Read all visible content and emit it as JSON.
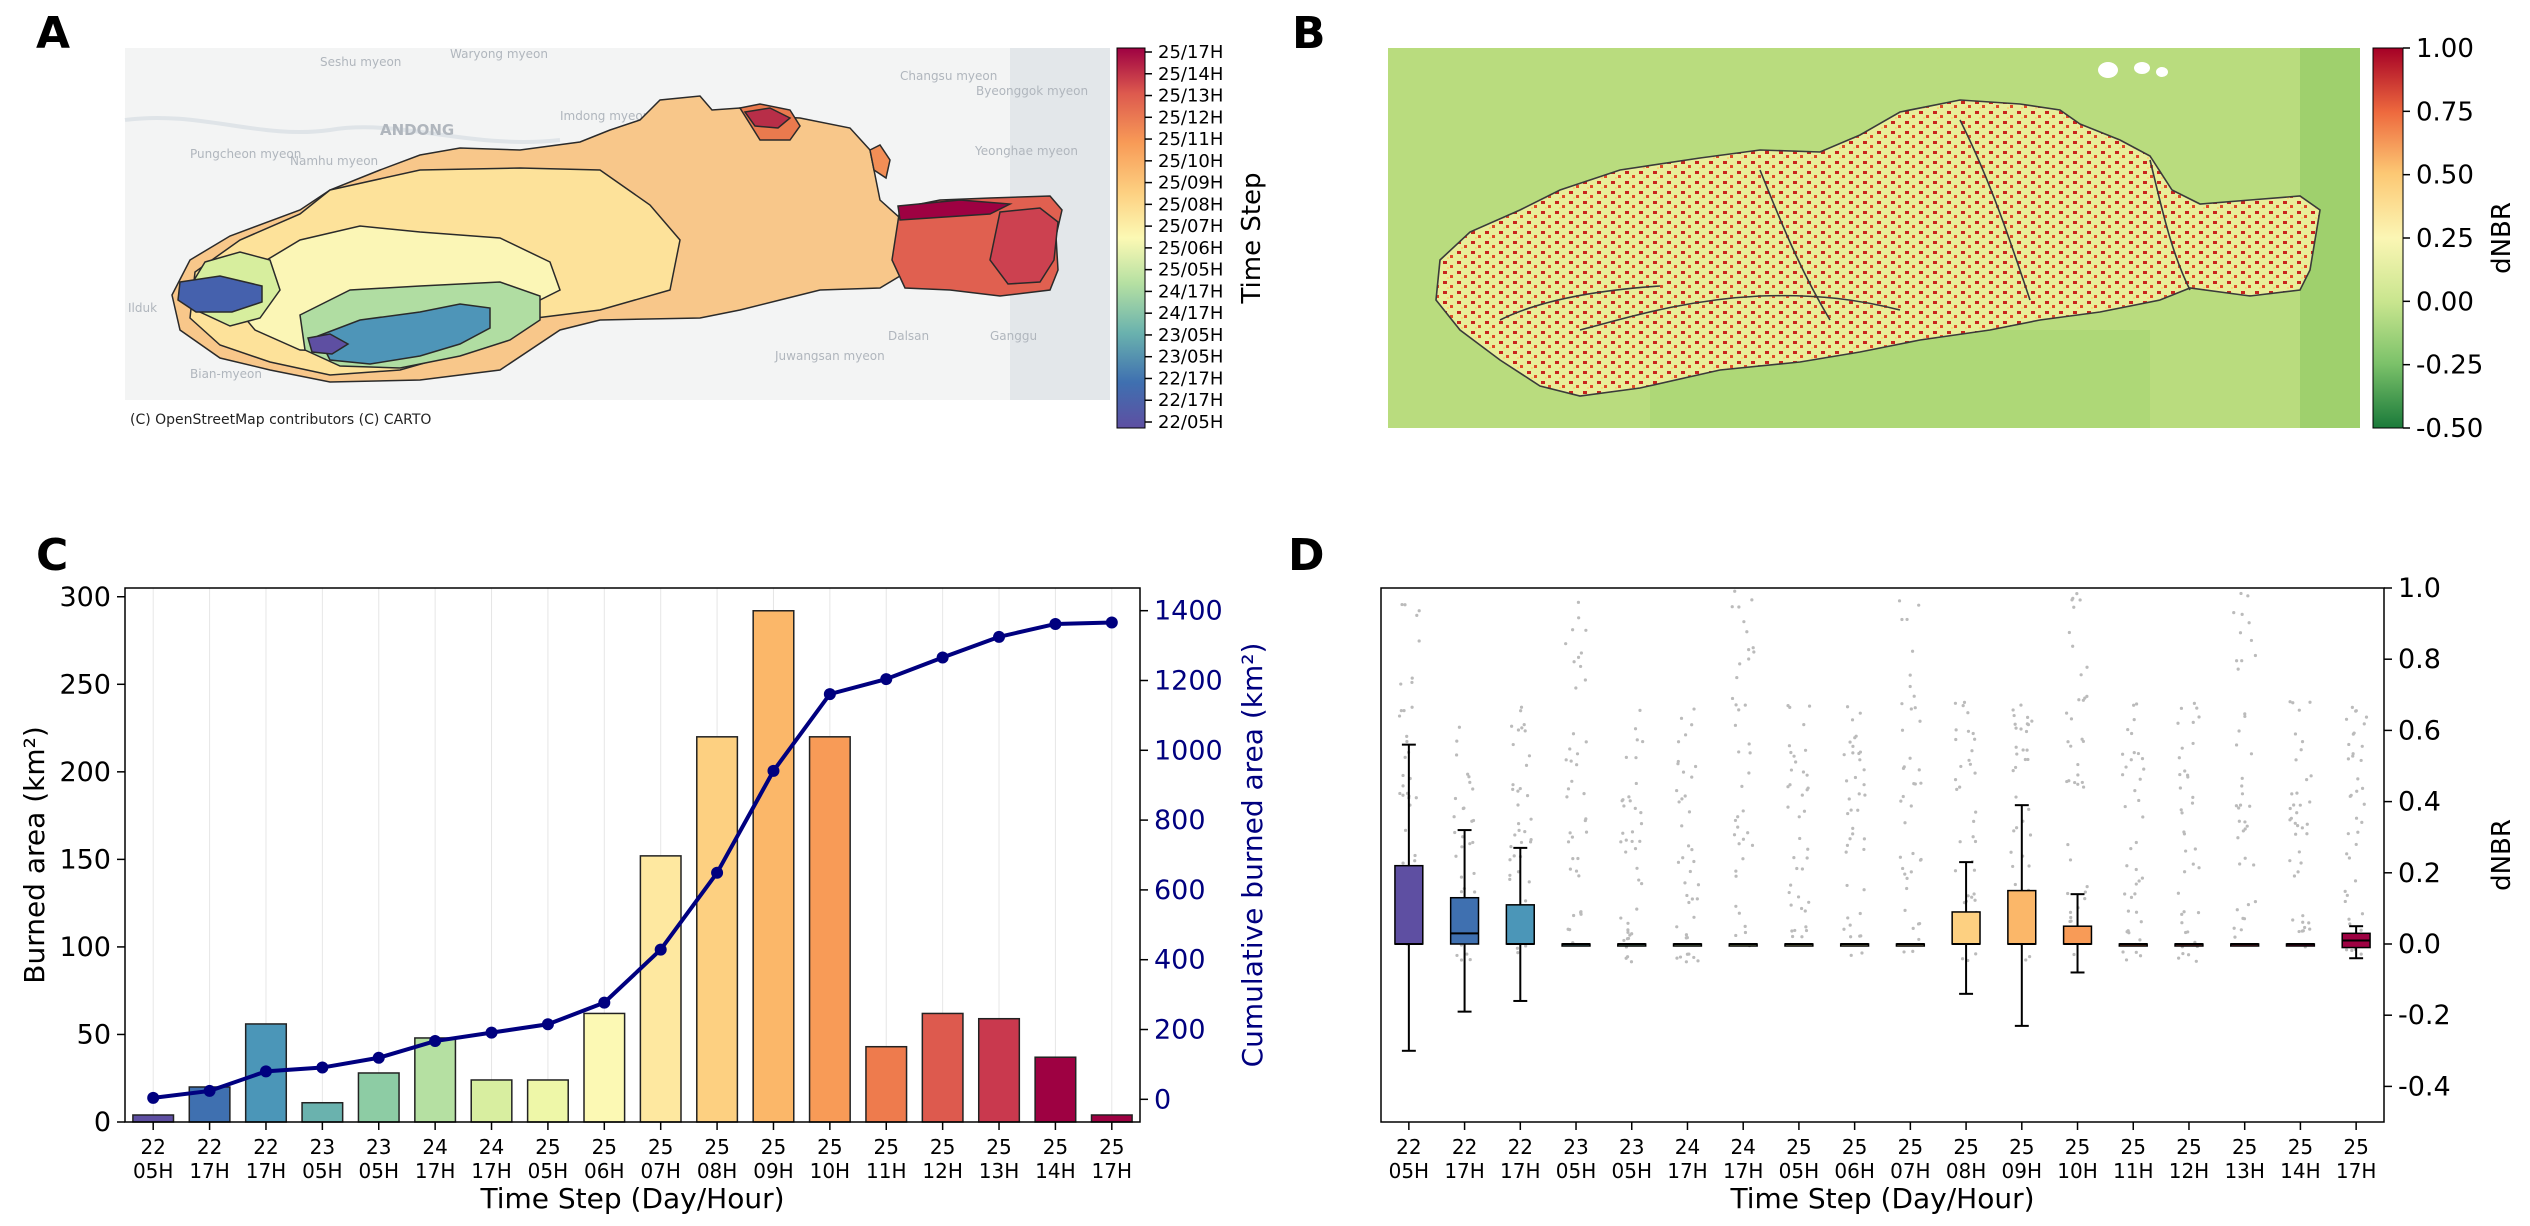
{
  "colors": {
    "spectral": [
      "#5e4fa2",
      "#3f70b0",
      "#4b96b8",
      "#6ab2ae",
      "#8dcca4",
      "#b5e0a2",
      "#d8eea0",
      "#eef7a8",
      "#fcf9b4",
      "#fee8a0",
      "#fdd081",
      "#fbb769",
      "#f89b57",
      "#ee7b4d",
      "#dd5a4e",
      "#c9394e",
      "#9e0142"
    ],
    "line": "#00007f",
    "bar_edge": "#222222"
  },
  "panelA": {
    "letter": "A",
    "attribution": "(C) OpenStreetMap contributors (C) CARTO",
    "colorbar_label": "Time Step",
    "colorbar_ticks": [
      "25/17H",
      "25/14H",
      "25/13H",
      "25/12H",
      "25/11H",
      "25/10H",
      "25/09H",
      "25/08H",
      "25/07H",
      "25/06H",
      "25/05H",
      "24/17H",
      "24/17H",
      "23/05H",
      "23/05H",
      "22/17H",
      "22/17H",
      "22/05H"
    ],
    "place_labels": [
      "Seshu myeon",
      "Waryong myeon",
      "ANDONG",
      "Imdong myeon",
      "Pungcheon myeon",
      "Namhu myeon",
      "Changsu myeon",
      "Byeonggok myeon",
      "Yeonghae myeon",
      "Dalsan",
      "Juwangsan myeon",
      "Ganggu",
      "Bian-myeon",
      "Ilduk"
    ]
  },
  "panelB": {
    "letter": "B",
    "colorbar_label": "dNBR",
    "colorbar_ticks": [
      "1.00",
      "0.75",
      "0.50",
      "0.25",
      "0.00",
      "-0.25",
      "-0.50"
    ]
  },
  "chart_data": [
    {
      "panel": "C",
      "type": "bar",
      "categories": [
        "22\n05H",
        "22\n17H",
        "22\n17H",
        "23\n05H",
        "23\n05H",
        "24\n17H",
        "24\n17H",
        "25\n05H",
        "25\n06H",
        "25\n07H",
        "25\n08H",
        "25\n09H",
        "25\n10H",
        "25\n11H",
        "25\n12H",
        "25\n13H",
        "25\n14H",
        "25\n17H"
      ],
      "values": [
        4,
        20,
        56,
        11,
        28,
        48,
        24,
        24,
        62,
        152,
        220,
        292,
        220,
        43,
        62,
        59,
        37,
        4
      ],
      "line_series": {
        "name": "Cumulative burned area",
        "values": [
          4,
          24,
          80,
          91,
          119,
          167,
          191,
          215,
          277,
          429,
          649,
          941,
          1161,
          1204,
          1266,
          1325,
          1362,
          1366
        ]
      },
      "xlabel": "Time Step (Day/Hour)",
      "ylabel": "Burned area (km²)",
      "y2label": "Cumulative burned area (km²)",
      "ylim": [
        0,
        305
      ],
      "y2lim": [
        -65,
        1465
      ],
      "yticks": [
        0,
        50,
        100,
        150,
        200,
        250,
        300
      ],
      "y2ticks": [
        0,
        200,
        400,
        600,
        800,
        1000,
        1200,
        1400
      ]
    },
    {
      "panel": "D",
      "type": "box",
      "categories": [
        "22\n05H",
        "22\n17H",
        "22\n17H",
        "23\n05H",
        "23\n05H",
        "24\n17H",
        "24\n17H",
        "25\n05H",
        "25\n06H",
        "25\n07H",
        "25\n08H",
        "25\n09H",
        "25\n10H",
        "25\n11H",
        "25\n12H",
        "25\n13H",
        "25\n14H",
        "25\n17H"
      ],
      "boxes": [
        {
          "whislo": -0.3,
          "q1": 0.0,
          "med": 0.0,
          "q3": 0.22,
          "whishi": 0.56
        },
        {
          "whislo": -0.19,
          "q1": 0.0,
          "med": 0.03,
          "q3": 0.13,
          "whishi": 0.32
        },
        {
          "whislo": -0.16,
          "q1": 0.0,
          "med": 0.0,
          "q3": 0.11,
          "whishi": 0.27
        },
        {
          "whislo": 0,
          "q1": 0,
          "med": 0,
          "q3": 0,
          "whishi": 0
        },
        {
          "whislo": 0,
          "q1": 0,
          "med": 0,
          "q3": 0,
          "whishi": 0
        },
        {
          "whislo": 0,
          "q1": 0,
          "med": 0,
          "q3": 0,
          "whishi": 0
        },
        {
          "whislo": 0,
          "q1": 0,
          "med": 0,
          "q3": 0,
          "whishi": 0
        },
        {
          "whislo": 0,
          "q1": 0,
          "med": 0,
          "q3": 0,
          "whishi": 0
        },
        {
          "whislo": 0,
          "q1": 0,
          "med": 0,
          "q3": 0,
          "whishi": 0
        },
        {
          "whislo": 0,
          "q1": 0,
          "med": 0,
          "q3": 0,
          "whishi": 0
        },
        {
          "whislo": -0.14,
          "q1": 0.0,
          "med": 0.0,
          "q3": 0.09,
          "whishi": 0.23
        },
        {
          "whislo": -0.23,
          "q1": 0.0,
          "med": 0.0,
          "q3": 0.15,
          "whishi": 0.39
        },
        {
          "whislo": -0.08,
          "q1": 0.0,
          "med": 0.0,
          "q3": 0.05,
          "whishi": 0.14
        },
        {
          "whislo": 0,
          "q1": 0,
          "med": 0,
          "q3": 0,
          "whishi": 0
        },
        {
          "whislo": 0,
          "q1": 0,
          "med": 0,
          "q3": 0,
          "whishi": 0
        },
        {
          "whislo": 0,
          "q1": 0,
          "med": 0,
          "q3": 0,
          "whishi": 0
        },
        {
          "whislo": 0,
          "q1": 0,
          "med": 0,
          "q3": 0,
          "whishi": 0
        },
        {
          "whislo": -0.04,
          "q1": -0.01,
          "med": 0.01,
          "q3": 0.03,
          "whishi": 0.05
        }
      ],
      "xlabel": "Time Step (Day/Hour)",
      "ylabel": "dNBR",
      "ylim": [
        -0.5,
        1.0
      ],
      "yticks": [
        -0.4,
        -0.2,
        0.0,
        0.2,
        0.4,
        0.6,
        0.8,
        1.0
      ]
    }
  ],
  "panelC": {
    "letter": "C"
  },
  "panelD": {
    "letter": "D"
  }
}
